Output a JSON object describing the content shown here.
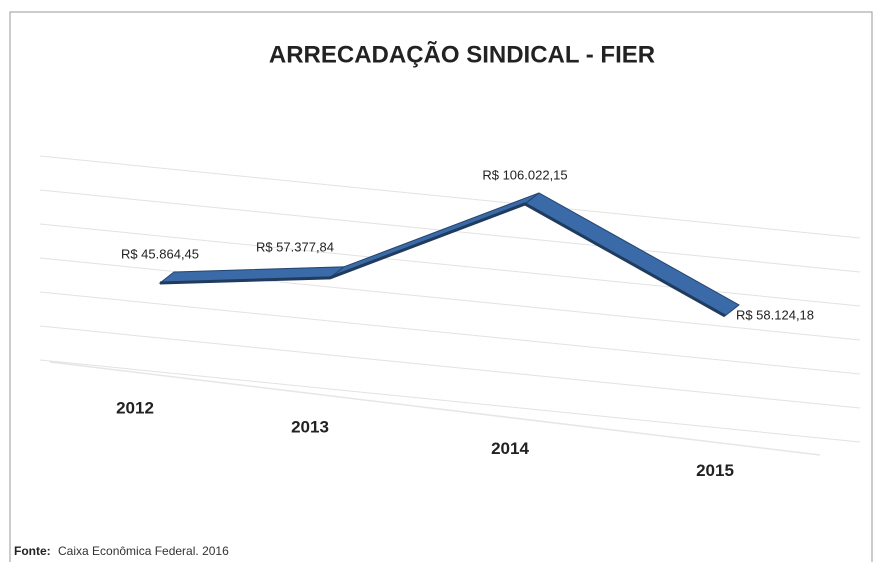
{
  "chart_data": {
    "type": "line3d",
    "title": "ARRECADAÇÃO SINDICAL - FIER",
    "categories": [
      "2012",
      "2013",
      "2014",
      "2015"
    ],
    "values": [
      45864.45,
      57377.84,
      106022.15,
      58124.18
    ],
    "value_labels": [
      "R$ 45.864,45",
      "R$ 57.377,84",
      "R$ 106.022,15",
      "R$ 58.124,18"
    ],
    "color": "#3a6aa8",
    "grid": true
  },
  "source_label": "Fonte:",
  "source": "Caixa Econômica Federal. 2016"
}
